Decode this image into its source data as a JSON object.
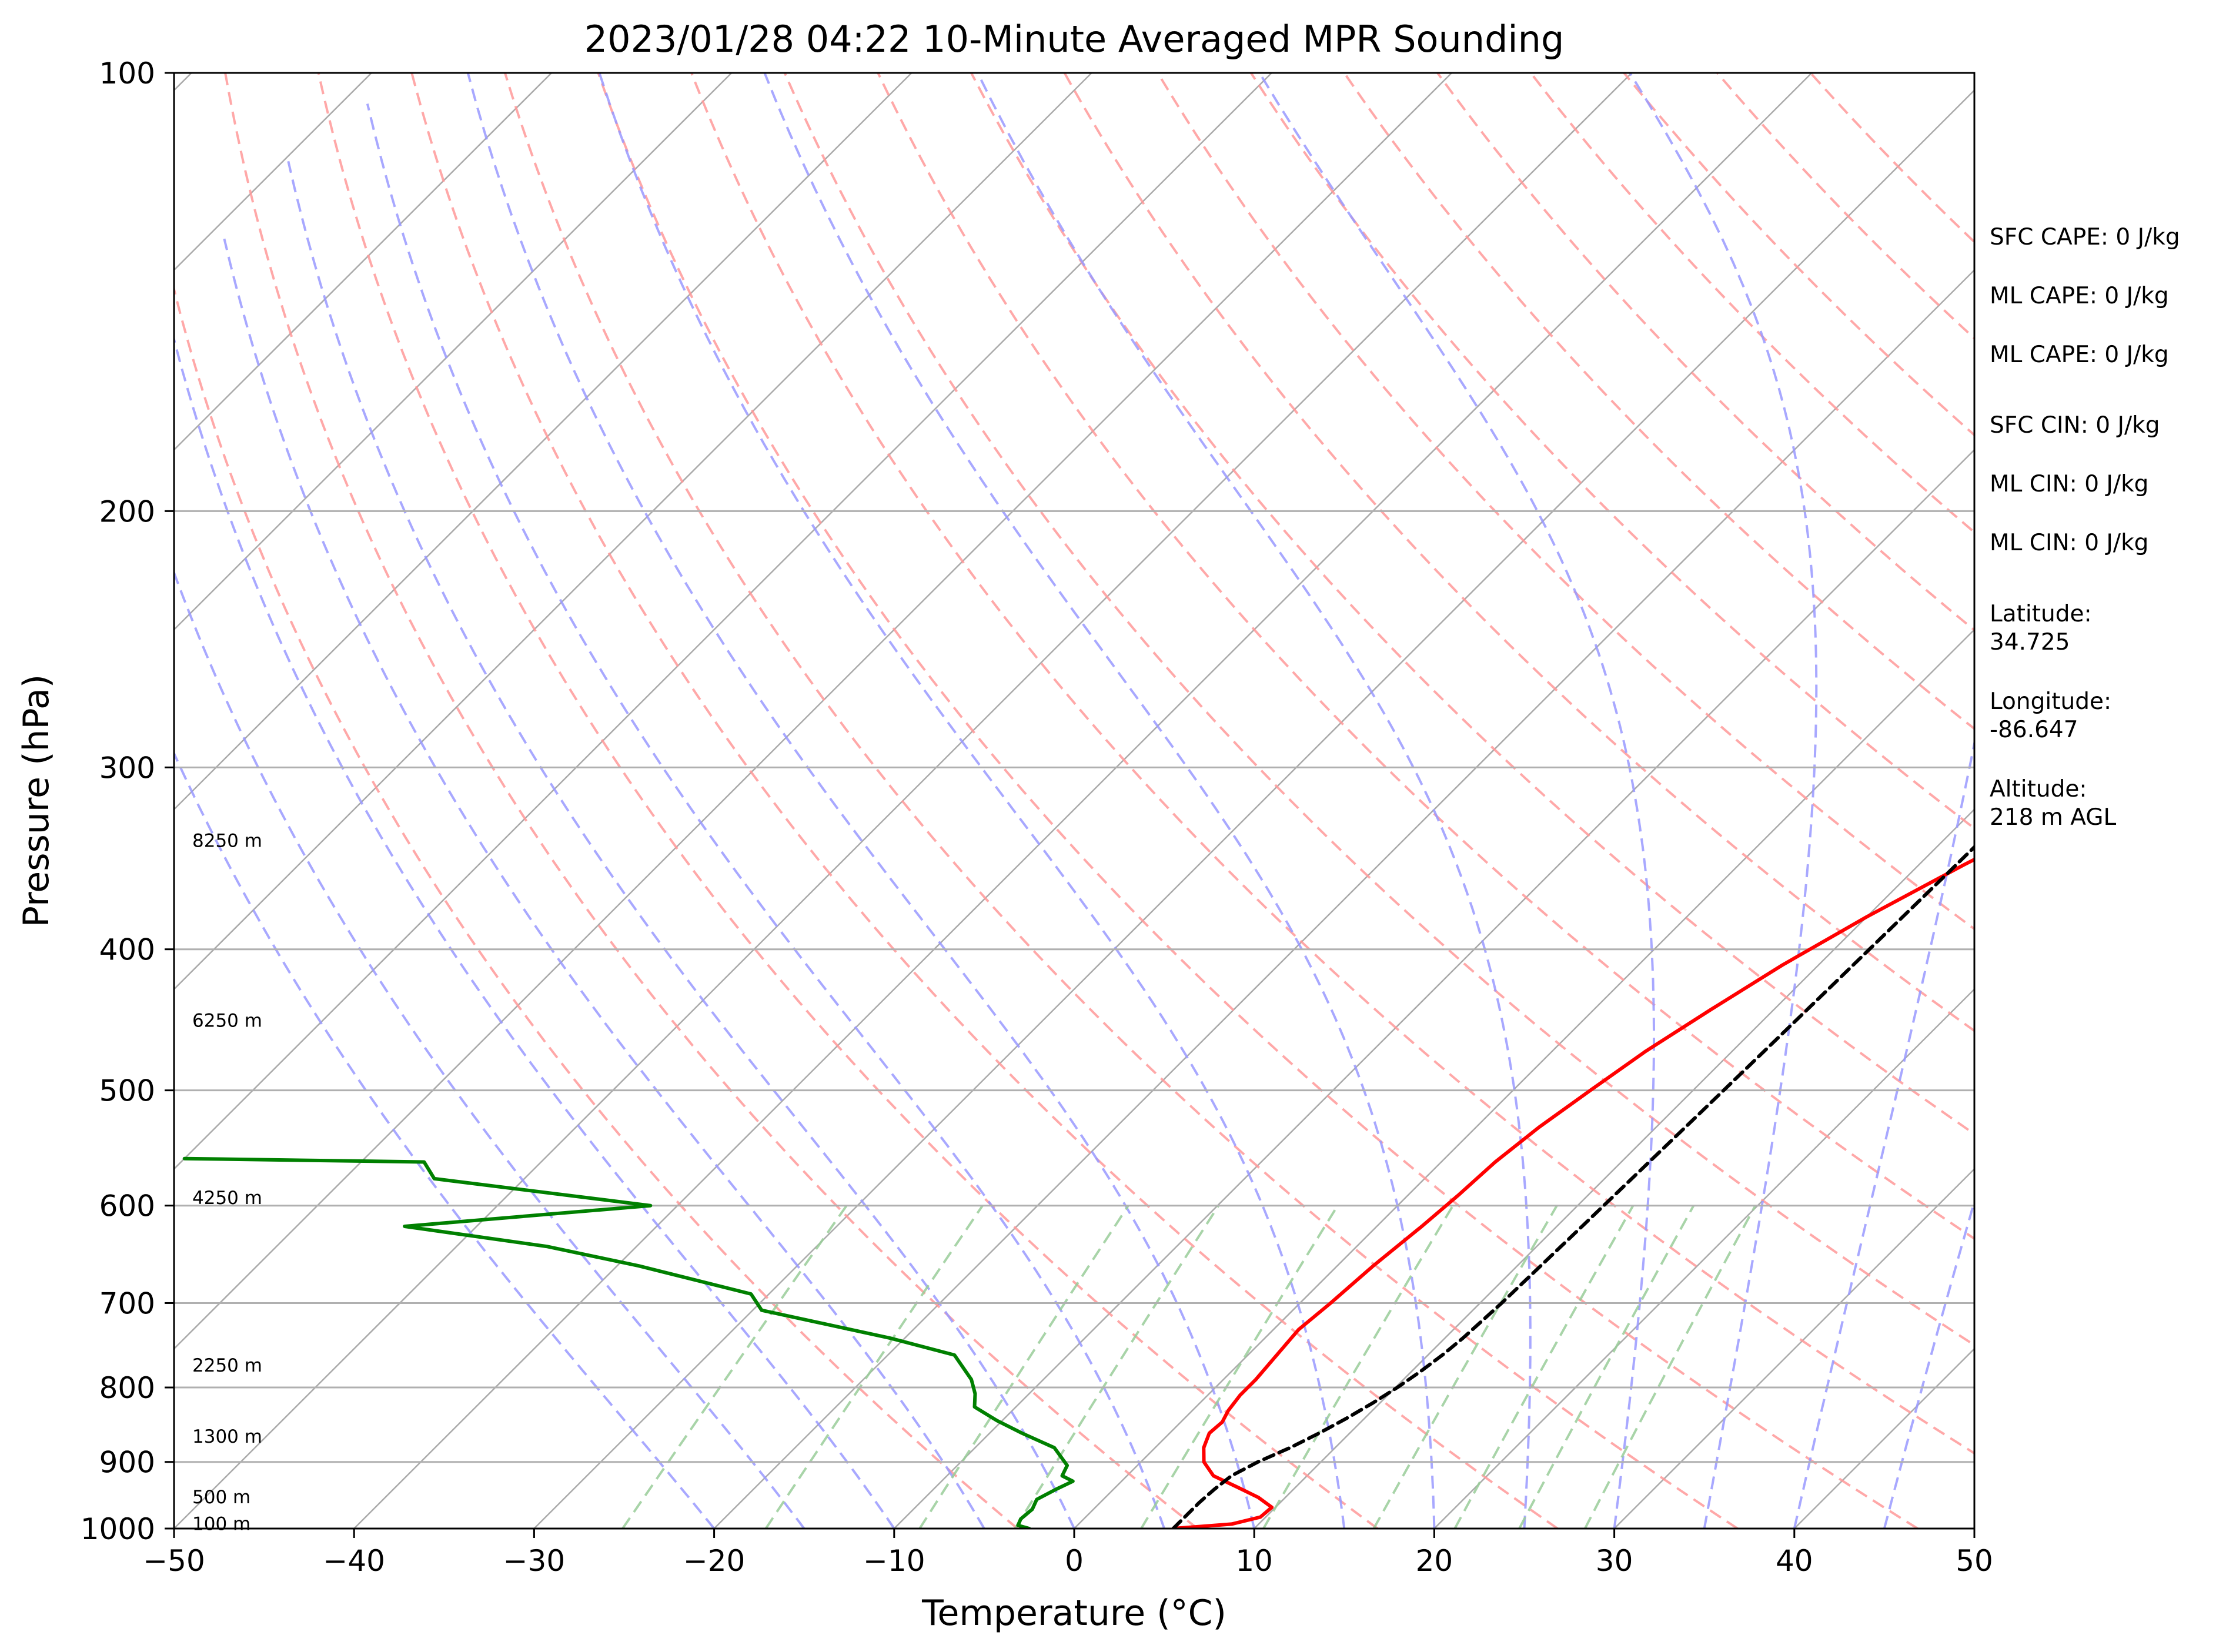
{
  "chart_data": {
    "type": "line",
    "chart_kind": "skew-T log-P sounding",
    "title": "2023/01/28 04:22 10-Minute Averaged MPR Sounding",
    "xlabel": "Temperature (°C)",
    "ylabel": "Pressure (hPa)",
    "xlim": [
      -50,
      50
    ],
    "ylim": [
      1000,
      100
    ],
    "y_scale": "log",
    "grid": true,
    "x_ticks": [
      "−50",
      "−40",
      "−30",
      "−20",
      "−10",
      "0",
      "10",
      "20",
      "30",
      "40",
      "50"
    ],
    "x_tick_values": [
      -50,
      -40,
      -30,
      -20,
      -10,
      0,
      10,
      20,
      30,
      40,
      50
    ],
    "y_ticks": [
      "1000",
      "900",
      "800",
      "700",
      "600",
      "500",
      "400",
      "300",
      "200",
      "100"
    ],
    "y_tick_values": [
      1000,
      900,
      800,
      700,
      600,
      500,
      400,
      300,
      200,
      100
    ],
    "height_labels": [
      {
        "text": "100 m",
        "p": 993
      },
      {
        "text": "500 m",
        "p": 952
      },
      {
        "text": "1300 m",
        "p": 865
      },
      {
        "text": "2250 m",
        "p": 773
      },
      {
        "text": "4250 m",
        "p": 593
      },
      {
        "text": "6250 m",
        "p": 448
      },
      {
        "text": "8250 m",
        "p": 337
      }
    ],
    "series": [
      {
        "role": "temperature",
        "color": "#ff0000",
        "points": [
          [
            1000,
            5.5
          ],
          [
            993,
            8.5
          ],
          [
            982,
            9.7
          ],
          [
            967,
            9.8
          ],
          [
            952,
            8.5
          ],
          [
            937,
            6.8
          ],
          [
            920,
            4.8
          ],
          [
            900,
            3.5
          ],
          [
            880,
            2.7
          ],
          [
            860,
            2.2
          ],
          [
            845,
            2.3
          ],
          [
            830,
            2.0
          ],
          [
            810,
            1.8
          ],
          [
            790,
            1.8
          ],
          [
            760,
            1.6
          ],
          [
            730,
            1.4
          ],
          [
            700,
            1.7
          ],
          [
            660,
            2.0
          ],
          [
            620,
            2.5
          ],
          [
            590,
            2.8
          ],
          [
            560,
            3.0
          ],
          [
            530,
            3.5
          ],
          [
            500,
            4.3
          ],
          [
            470,
            5.2
          ],
          [
            440,
            6.5
          ],
          [
            410,
            8.0
          ],
          [
            380,
            10.0
          ],
          [
            350,
            12.5
          ],
          [
            320,
            15.5
          ],
          [
            300,
            18.0
          ],
          [
            280,
            21.0
          ],
          [
            262,
            24.5
          ]
        ]
      },
      {
        "role": "dewpoint",
        "color": "#008000",
        "points": [
          [
            1000,
            -2.5
          ],
          [
            995,
            -3.3
          ],
          [
            985,
            -3.5
          ],
          [
            970,
            -3.4
          ],
          [
            955,
            -3.7
          ],
          [
            940,
            -3.2
          ],
          [
            928,
            -2.7
          ],
          [
            920,
            -3.6
          ],
          [
            905,
            -3.9
          ],
          [
            880,
            -5.6
          ],
          [
            860,
            -8.2
          ],
          [
            843,
            -10.3
          ],
          [
            825,
            -12.3
          ],
          [
            808,
            -13.0
          ],
          [
            790,
            -14.0
          ],
          [
            760,
            -16.3
          ],
          [
            740,
            -20.8
          ],
          [
            708,
            -29.5
          ],
          [
            690,
            -31.0
          ],
          [
            660,
            -38.8
          ],
          [
            640,
            -45.0
          ],
          [
            620,
            -54.0
          ],
          [
            600,
            -41.5
          ],
          [
            575,
            -55.0
          ],
          [
            560,
            -56.5
          ],
          [
            557,
            -70.0
          ]
        ]
      },
      {
        "role": "parcel",
        "color": "#000000",
        "points": [
          [
            1000,
            5.5
          ],
          [
            980,
            5.5
          ],
          [
            960,
            5.5
          ],
          [
            940,
            5.6
          ],
          [
            920,
            5.8
          ],
          [
            900,
            6.5
          ],
          [
            880,
            7.5
          ],
          [
            860,
            8.3
          ],
          [
            840,
            9.0
          ],
          [
            820,
            9.6
          ],
          [
            800,
            10.1
          ],
          [
            780,
            10.5
          ],
          [
            760,
            10.8
          ],
          [
            740,
            11.0
          ],
          [
            720,
            11.1
          ],
          [
            700,
            11.2
          ],
          [
            680,
            11.25
          ],
          [
            660,
            11.3
          ],
          [
            640,
            11.35
          ],
          [
            620,
            11.4
          ],
          [
            600,
            11.45
          ],
          [
            580,
            11.5
          ],
          [
            560,
            11.55
          ],
          [
            540,
            11.6
          ],
          [
            520,
            11.65
          ],
          [
            500,
            11.7
          ],
          [
            480,
            11.75
          ],
          [
            460,
            11.8
          ],
          [
            440,
            11.85
          ],
          [
            420,
            11.9
          ],
          [
            400,
            11.95
          ],
          [
            380,
            12.0
          ],
          [
            360,
            12.05
          ],
          [
            340,
            12.1
          ],
          [
            320,
            12.15
          ],
          [
            300,
            12.2
          ],
          [
            280,
            12.25
          ],
          [
            265,
            12.3
          ]
        ]
      }
    ],
    "background_lines": {
      "isotherms_color": "#aaaaaa",
      "dry_adiabats_color": "#ff9999",
      "moist_adiabats_color": "#9999ff",
      "mixing_ratio_color": "#99cc99",
      "dry_adiabat_thetas": [
        270,
        280,
        290,
        300,
        310,
        320,
        330,
        340,
        350,
        360,
        370,
        380,
        390,
        400,
        410,
        420,
        430,
        440,
        450
      ],
      "moist_adiabat_temps": [
        -20,
        -15,
        -10,
        -5,
        0,
        5,
        10,
        15,
        20,
        25,
        30,
        35,
        40,
        45
      ],
      "mixing_ratios": [
        0.5,
        1,
        2,
        3,
        5,
        8,
        12,
        16,
        20,
        25
      ]
    }
  },
  "indices": [
    {
      "text": "SFC CAPE: 0 J/kg"
    },
    {
      "text": "ML CAPE: 0 J/kg"
    },
    {
      "text": "ML CAPE: 0 J/kg"
    },
    {
      "text": "SFC CIN: 0 J/kg"
    },
    {
      "text": "ML CIN: 0 J/kg"
    },
    {
      "text": "ML CIN: 0 J/kg"
    }
  ],
  "location": {
    "latitude_label": "Latitude:",
    "latitude_value": "34.725",
    "longitude_label": "Longitude:",
    "longitude_value": "-86.647",
    "altitude_label": "Altitude:",
    "altitude_value": "218 m AGL"
  }
}
